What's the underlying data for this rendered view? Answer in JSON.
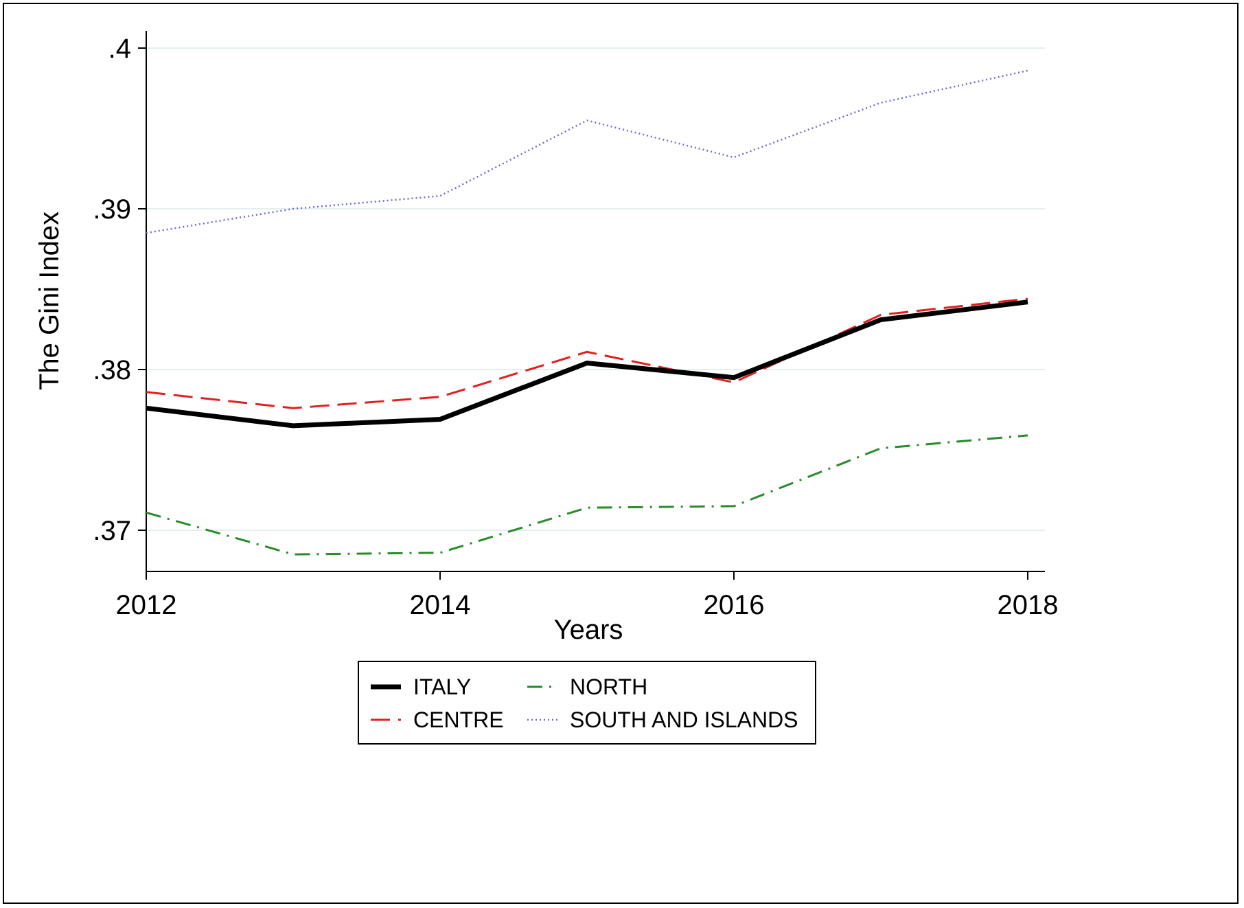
{
  "chart_data": {
    "type": "line",
    "title": "",
    "xlabel": "Years",
    "ylabel": "The Gini Index",
    "x": [
      2012,
      2013,
      2014,
      2015,
      2016,
      2017,
      2018
    ],
    "xticks": [
      2012,
      2014,
      2016,
      2018
    ],
    "xtick_labels": [
      "2012",
      "2014",
      "2016",
      "2018"
    ],
    "yticks": [
      0.37,
      0.38,
      0.39,
      0.4
    ],
    "ytick_labels": [
      ".37",
      ".38",
      ".39",
      ".4"
    ],
    "xlim": [
      2012,
      2018
    ],
    "ylim": [
      0.3675,
      0.401
    ],
    "grid": true,
    "legend_position": "bottom",
    "series": [
      {
        "name": "ITALY",
        "color": "#000000",
        "style": "solid-thick",
        "values": [
          0.3776,
          0.3765,
          0.3769,
          0.3804,
          0.3795,
          0.3831,
          0.3842
        ]
      },
      {
        "name": "CENTRE",
        "color": "#e02020",
        "style": "dashed",
        "values": [
          0.3786,
          0.3776,
          0.3783,
          0.3811,
          0.3792,
          0.3834,
          0.3844
        ]
      },
      {
        "name": "NORTH",
        "color": "#2a8a2a",
        "style": "dash-dot",
        "values": [
          0.3711,
          0.3685,
          0.3686,
          0.3714,
          0.3715,
          0.3751,
          0.3759
        ]
      },
      {
        "name": "SOUTH AND ISLANDS",
        "color": "#6a6ad8",
        "style": "dotted",
        "values": [
          0.3885,
          0.39,
          0.3908,
          0.3955,
          0.3932,
          0.3966,
          0.3986
        ]
      }
    ]
  }
}
